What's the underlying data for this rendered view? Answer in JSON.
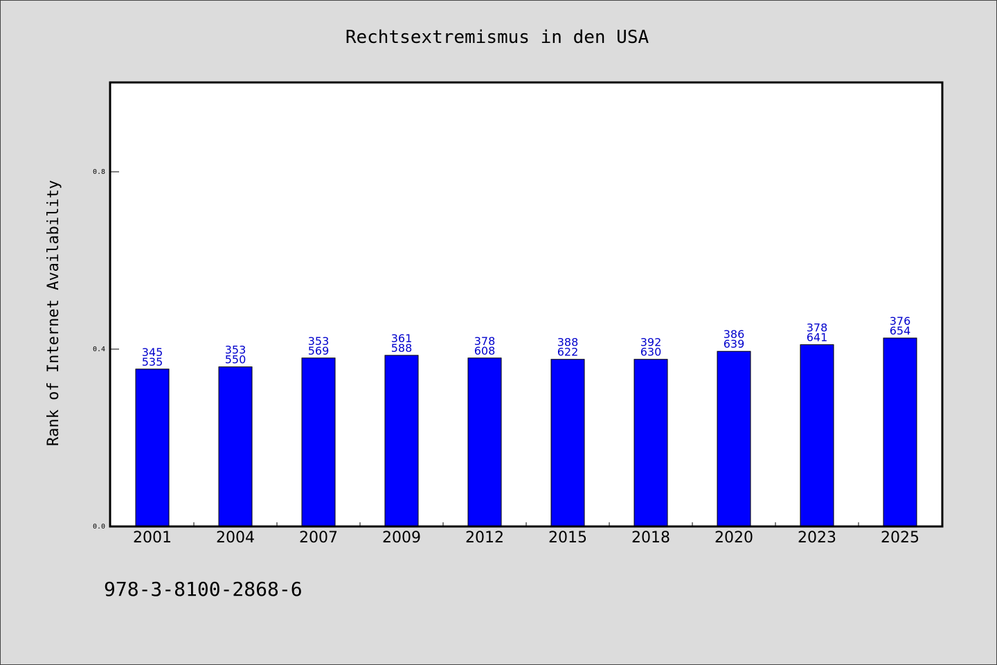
{
  "chart_data": {
    "type": "bar",
    "title": "Rechtsextremismus in den USA",
    "xlabel": "",
    "ylabel": "Rank of Internet Availability",
    "categories": [
      "2001",
      "2004",
      "2007",
      "2009",
      "2012",
      "2015",
      "2018",
      "2020",
      "2023",
      "2025"
    ],
    "values": [
      0.355,
      0.36,
      0.38,
      0.386,
      0.38,
      0.377,
      0.377,
      0.395,
      0.41,
      0.425
    ],
    "data_labels_top": [
      "345",
      "353",
      "353",
      "361",
      "378",
      "388",
      "392",
      "386",
      "378",
      "376"
    ],
    "data_labels_bottom": [
      "535",
      "550",
      "569",
      "588",
      "608",
      "622",
      "630",
      "639",
      "641",
      "654"
    ],
    "ylim": [
      0,
      1.0
    ],
    "yticks": [
      0.0,
      0.4,
      0.8
    ],
    "ytick_labels": [
      "0.0",
      "0.4",
      "0.8"
    ],
    "grid": false,
    "bar_color": "#0000ff",
    "label_color": "#0000cc"
  },
  "footer": {
    "code": "978-3-8100-2868-6"
  }
}
